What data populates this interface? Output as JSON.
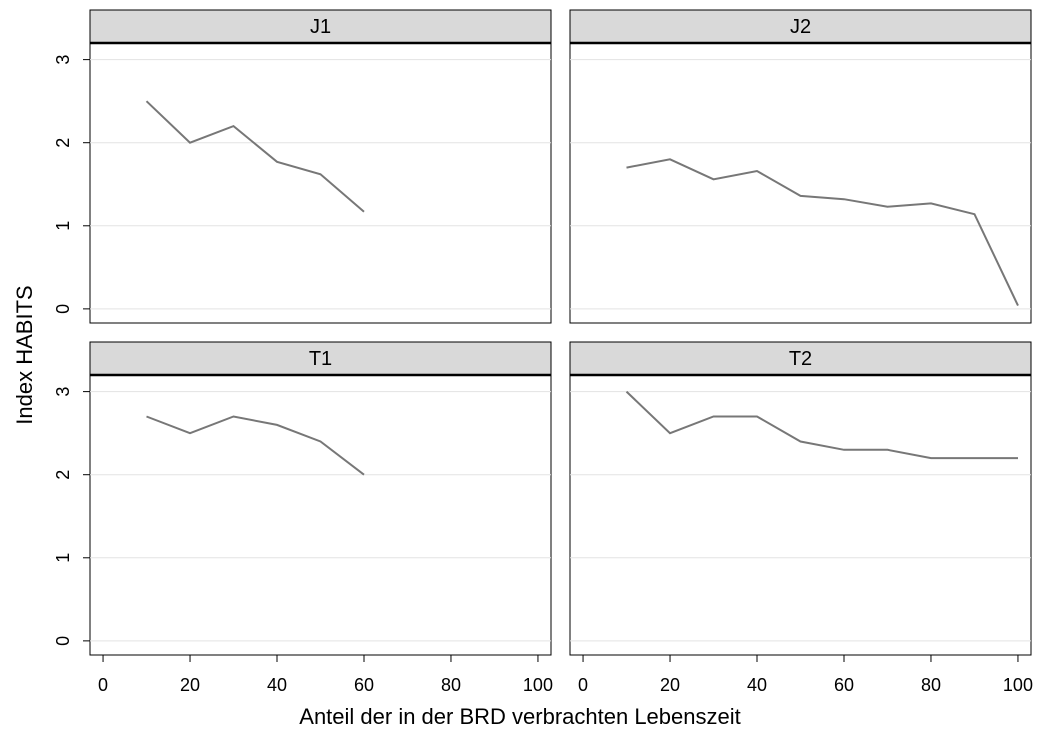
{
  "xlabel": "Anteil der in der BRD verbrachten Lebenszeit",
  "ylabel": "Index HABITS",
  "chart_data": [
    {
      "type": "line",
      "title": "J1",
      "color": "#777777",
      "grid": true,
      "x": [
        10,
        20,
        30,
        40,
        50,
        60
      ],
      "values": [
        2.5,
        2.0,
        2.2,
        1.77,
        1.62,
        1.17
      ],
      "xlim": [
        -3,
        103
      ],
      "ylim": [
        -0.17,
        3.2
      ],
      "yticks": [
        0,
        1,
        2,
        3
      ]
    },
    {
      "type": "line",
      "title": "J2",
      "color": "#777777",
      "grid": true,
      "x": [
        10,
        20,
        30,
        40,
        50,
        60,
        70,
        80,
        90,
        100
      ],
      "values": [
        1.7,
        1.8,
        1.56,
        1.66,
        1.36,
        1.32,
        1.23,
        1.27,
        1.14,
        0.04
      ],
      "xlim": [
        -3,
        103
      ],
      "ylim": [
        -0.17,
        3.2
      ],
      "yticks": [
        0,
        1,
        2,
        3
      ]
    },
    {
      "type": "line",
      "title": "T1",
      "color": "#777777",
      "grid": true,
      "x": [
        10,
        20,
        30,
        40,
        50,
        60
      ],
      "values": [
        2.7,
        2.5,
        2.7,
        2.6,
        2.4,
        2.0
      ],
      "xlim": [
        -3,
        103
      ],
      "ylim": [
        -0.17,
        3.2
      ],
      "xticks": [
        0,
        20,
        40,
        60,
        80,
        100
      ],
      "yticks": [
        0,
        1,
        2,
        3
      ]
    },
    {
      "type": "line",
      "title": "T2",
      "color": "#777777",
      "grid": true,
      "x": [
        10,
        20,
        30,
        40,
        50,
        60,
        70,
        80,
        90,
        100
      ],
      "values": [
        3.0,
        2.5,
        2.7,
        2.7,
        2.4,
        2.3,
        2.3,
        2.2,
        2.2,
        2.2
      ],
      "xlim": [
        -3,
        103
      ],
      "ylim": [
        -0.17,
        3.2
      ],
      "xticks": [
        0,
        20,
        40,
        60,
        80,
        100
      ],
      "yticks": [
        0,
        1,
        2,
        3
      ]
    }
  ]
}
